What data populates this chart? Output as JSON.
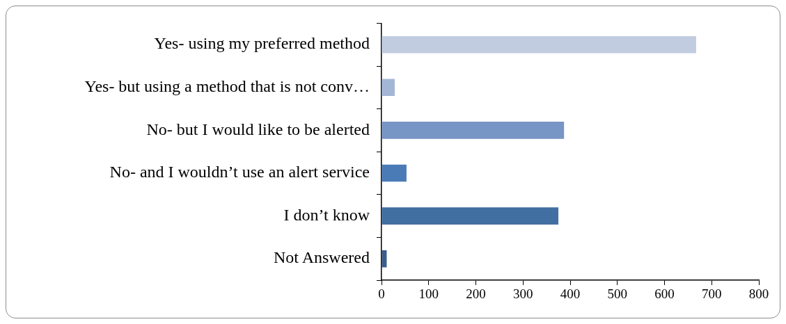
{
  "chart_data": {
    "type": "bar",
    "orientation": "horizontal",
    "categories": [
      "Yes- using my preferred method",
      "Yes- but using a method that is not conv…",
      "No- but I would like to be alerted",
      "No- and I wouldn’t use an alert service",
      "I don’t know",
      "Not Answered"
    ],
    "values": [
      667,
      28,
      387,
      53,
      375,
      11
    ],
    "colors": [
      "#c1cce0",
      "#a3b6d6",
      "#7795c5",
      "#4a7bb6",
      "#426fa2",
      "#395d8c"
    ],
    "xlim": [
      0,
      800
    ],
    "xticks": [
      0,
      100,
      200,
      300,
      400,
      500,
      600,
      700,
      800
    ],
    "grid": false
  }
}
